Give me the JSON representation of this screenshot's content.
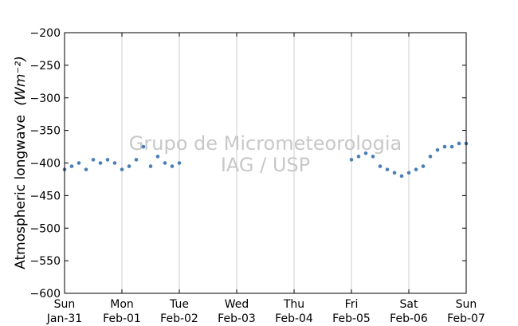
{
  "chart_data": {
    "type": "scatter",
    "ylabel": "Atmospheric longwave",
    "ylabel_unit": "(Wm⁻²)",
    "ylim": [
      -600,
      -200
    ],
    "yticks": [
      -200,
      -250,
      -300,
      -350,
      -400,
      -450,
      -500,
      -550,
      -600
    ],
    "ytick_labels": [
      "−200",
      "−250",
      "−300",
      "−350",
      "−400",
      "−450",
      "−500",
      "−550",
      "−600"
    ],
    "xlim": [
      "2021-01-31",
      "2021-02-07"
    ],
    "xticks": [
      {
        "date": "2021-01-31",
        "day": "Sun",
        "label": "Jan-31"
      },
      {
        "date": "2021-02-01",
        "day": "Mon",
        "label": "Feb-01"
      },
      {
        "date": "2021-02-02",
        "day": "Tue",
        "label": "Feb-02"
      },
      {
        "date": "2021-02-03",
        "day": "Wed",
        "label": "Feb-03"
      },
      {
        "date": "2021-02-04",
        "day": "Thu",
        "label": "Feb-04"
      },
      {
        "date": "2021-02-05",
        "day": "Fri",
        "label": "Feb-05"
      },
      {
        "date": "2021-02-06",
        "day": "Sat",
        "label": "Feb-06"
      },
      {
        "date": "2021-02-07",
        "day": "Sun",
        "label": "Feb-07"
      }
    ],
    "grid": "vertical",
    "marker_color": "#4a7fb5",
    "watermark": [
      "Grupo de Micrometeorologia",
      "IAG / USP"
    ],
    "series": [
      {
        "x": [
          "2021-01-31 00:00",
          "2021-01-31 03:00",
          "2021-01-31 06:00",
          "2021-01-31 09:00",
          "2021-01-31 12:00",
          "2021-01-31 15:00",
          "2021-01-31 18:00",
          "2021-01-31 21:00",
          "2021-02-01 00:00",
          "2021-02-01 03:00",
          "2021-02-01 06:00",
          "2021-02-01 09:00",
          "2021-02-01 12:00",
          "2021-02-01 15:00",
          "2021-02-01 18:00",
          "2021-02-01 21:00",
          "2021-02-02 00:00",
          "2021-02-05 00:00",
          "2021-02-05 03:00",
          "2021-02-05 06:00",
          "2021-02-05 09:00",
          "2021-02-05 12:00",
          "2021-02-05 15:00",
          "2021-02-05 18:00",
          "2021-02-05 21:00",
          "2021-02-06 00:00",
          "2021-02-06 03:00",
          "2021-02-06 06:00",
          "2021-02-06 09:00",
          "2021-02-06 12:00",
          "2021-02-06 15:00",
          "2021-02-06 18:00",
          "2021-02-06 21:00",
          "2021-02-07 00:00"
        ],
        "y": [
          -410,
          -405,
          -400,
          -410,
          -395,
          -400,
          -395,
          -400,
          -410,
          -405,
          -395,
          -375,
          -405,
          -390,
          -400,
          -405,
          -400,
          -395,
          -390,
          -385,
          -390,
          -405,
          -410,
          -415,
          -420,
          -415,
          -410,
          -405,
          -390,
          -380,
          -375,
          -375,
          -370,
          -370
        ]
      }
    ]
  }
}
